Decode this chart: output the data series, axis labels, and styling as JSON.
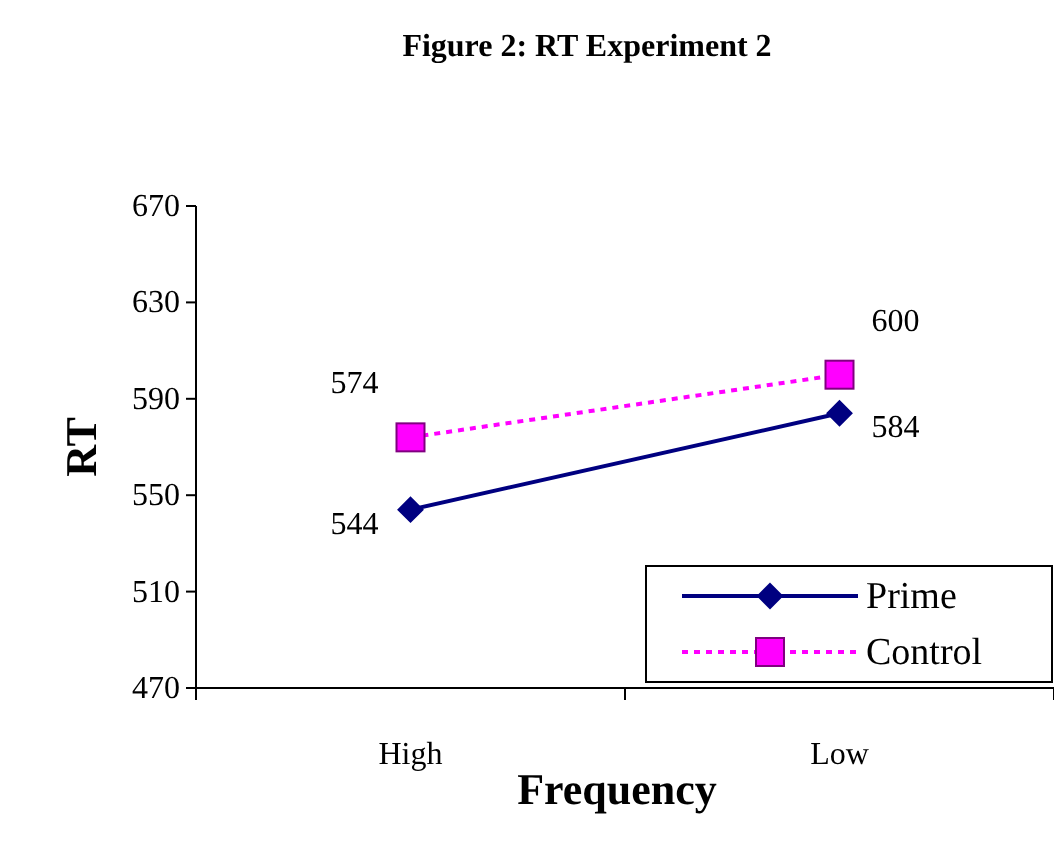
{
  "chart_data": {
    "type": "line",
    "title": "Figure 2: RT Experiment 2",
    "xlabel": "Frequency",
    "ylabel": "RT",
    "categories": [
      "High",
      "Low"
    ],
    "series": [
      {
        "name": "Prime",
        "color": "#000080",
        "values": [
          544,
          584
        ],
        "marker": "diamond",
        "line_style": "solid"
      },
      {
        "name": "Control",
        "color": "#ff00ff",
        "values": [
          574,
          600
        ],
        "marker": "square",
        "line_style": "dotted"
      }
    ],
    "ylim": [
      470,
      670
    ],
    "yticks": [
      470,
      510,
      550,
      590,
      630,
      670
    ],
    "data_labels": true,
    "legend": "bottom right",
    "grid": false
  }
}
